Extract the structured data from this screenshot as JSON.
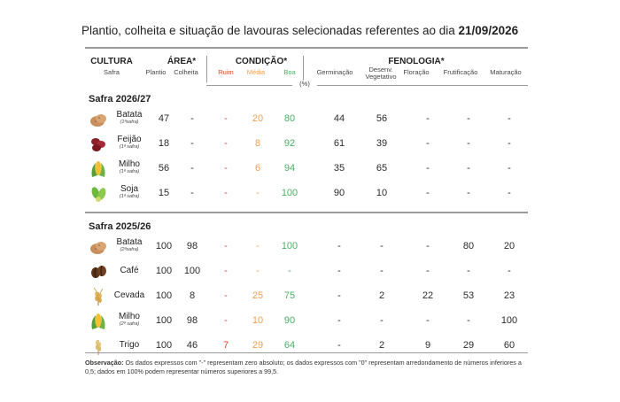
{
  "title": {
    "prefix": "Plantio, colheita e situação de lavouras selecionadas referentes ao dia ",
    "date": "21/09/2026"
  },
  "headers": {
    "cultura": "CULTURA",
    "safra": "Safra",
    "area": "ÁREA*",
    "plantio": "Plantio",
    "colheita": "Colheita",
    "condicao": "CONDIÇÃO*",
    "ruim": "Ruim",
    "media": "Média",
    "boa": "Boa",
    "fenologia": "FENOLOGIA*",
    "germinacao": "Germinação",
    "desenv_line1": "Desenv.",
    "desenv_line2": "Vegetativo",
    "floracao": "Floração",
    "frutificacao": "Frutificação",
    "maturacao": "Maturação",
    "unit": "(%)"
  },
  "sections": [
    {
      "label": "Safra 2026/27",
      "rows": [
        {
          "crop": "Batata",
          "sub": "(1ªsafra)",
          "icon": "potato-icon",
          "plantio": "47",
          "colheita": "-",
          "ruim": "-",
          "media": "20",
          "boa": "80",
          "germ": "44",
          "desenv": "56",
          "flor": "-",
          "frut": "-",
          "mat": "-"
        },
        {
          "crop": "Feijão",
          "sub": "(1ª safra)",
          "icon": "bean-icon",
          "plantio": "18",
          "colheita": "-",
          "ruim": "-",
          "media": "8",
          "boa": "92",
          "germ": "61",
          "desenv": "39",
          "flor": "-",
          "frut": "-",
          "mat": "-"
        },
        {
          "crop": "Milho",
          "sub": "(1ª safra)",
          "icon": "corn-icon",
          "plantio": "56",
          "colheita": "-",
          "ruim": "-",
          "media": "6",
          "boa": "94",
          "germ": "35",
          "desenv": "65",
          "flor": "-",
          "frut": "-",
          "mat": "-"
        },
        {
          "crop": "Soja",
          "sub": "(1ª safra)",
          "icon": "soybean-icon",
          "plantio": "15",
          "colheita": "-",
          "ruim": "-",
          "media": "-",
          "boa": "100",
          "germ": "90",
          "desenv": "10",
          "flor": "-",
          "frut": "-",
          "mat": "-"
        }
      ]
    },
    {
      "label": "Safra 2025/26",
      "rows": [
        {
          "crop": "Batata",
          "sub": "(2ªsafra)",
          "icon": "potato-icon",
          "plantio": "100",
          "colheita": "98",
          "ruim": "-",
          "media": "-",
          "boa": "100",
          "germ": "-",
          "desenv": "-",
          "flor": "-",
          "frut": "80",
          "mat": "20"
        },
        {
          "crop": "Café",
          "sub": "",
          "icon": "coffee-bean-icon",
          "plantio": "100",
          "colheita": "100",
          "ruim": "-",
          "media": "-",
          "boa": "-",
          "germ": "-",
          "desenv": "-",
          "flor": "-",
          "frut": "-",
          "mat": "-"
        },
        {
          "crop": "Cevada",
          "sub": "",
          "icon": "barley-icon",
          "plantio": "100",
          "colheita": "8",
          "ruim": "-",
          "media": "25",
          "boa": "75",
          "germ": "-",
          "desenv": "2",
          "flor": "22",
          "frut": "53",
          "mat": "23"
        },
        {
          "crop": "Milho",
          "sub": "(2ª safra)",
          "icon": "corn-icon",
          "plantio": "100",
          "colheita": "98",
          "ruim": "-",
          "media": "10",
          "boa": "90",
          "germ": "-",
          "desenv": "-",
          "flor": "-",
          "frut": "-",
          "mat": "100"
        },
        {
          "crop": "Trigo",
          "sub": "",
          "icon": "wheat-icon",
          "plantio": "100",
          "colheita": "46",
          "ruim": "7",
          "media": "29",
          "boa": "64",
          "germ": "-",
          "desenv": "2",
          "flor": "9",
          "frut": "29",
          "mat": "60"
        }
      ]
    }
  ],
  "observacao": {
    "label": "Observação:",
    "text": " Os dados expressos com \"-\" representam zero absoluto; os dados expressos com \"0\" representam arredondamento de números inferiores a 0,5; dados em 100% podem representar números superiores a 99,5."
  },
  "colors": {
    "ruim": "#d9452a",
    "media": "#f2a050",
    "boa": "#4caf63"
  }
}
